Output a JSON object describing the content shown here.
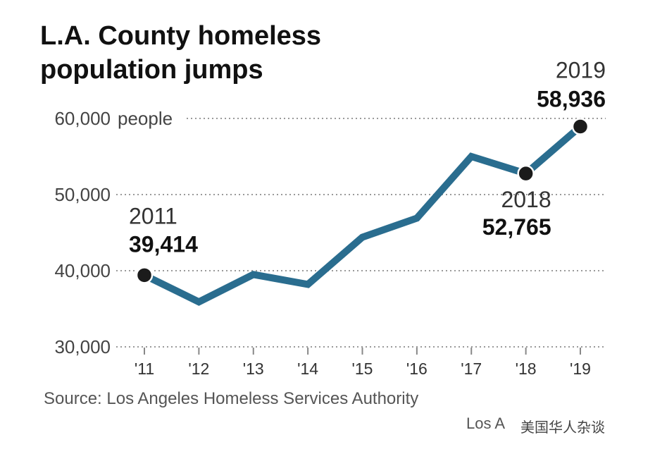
{
  "chart_data": {
    "type": "line",
    "title": "L.A. County homeless population jumps",
    "ylabel": "people",
    "ylim": [
      30000,
      60000
    ],
    "yticks": [
      30000,
      40000,
      50000,
      60000
    ],
    "ytick_labels": [
      "30,000",
      "40,000",
      "50,000",
      "60,000"
    ],
    "x": [
      "'11",
      "'12",
      "'13",
      "'14",
      "'15",
      "'16",
      "'17",
      "'18",
      "'19"
    ],
    "series": [
      {
        "name": "Homeless population",
        "color": "#2a6d8f",
        "values": [
          39414,
          35900,
          39500,
          38200,
          44400,
          46900,
          55000,
          52765,
          58936
        ]
      }
    ],
    "annotations": [
      {
        "index": 0,
        "year": "2011",
        "value_label": "39,414"
      },
      {
        "index": 7,
        "year": "2018",
        "value_label": "52,765"
      },
      {
        "index": 8,
        "year": "2019",
        "value_label": "58,936"
      }
    ],
    "grid": true,
    "source": "Source: Los Angeles Homeless Services Authority",
    "credit": "Los A"
  },
  "watermark": "美国华人杂谈"
}
